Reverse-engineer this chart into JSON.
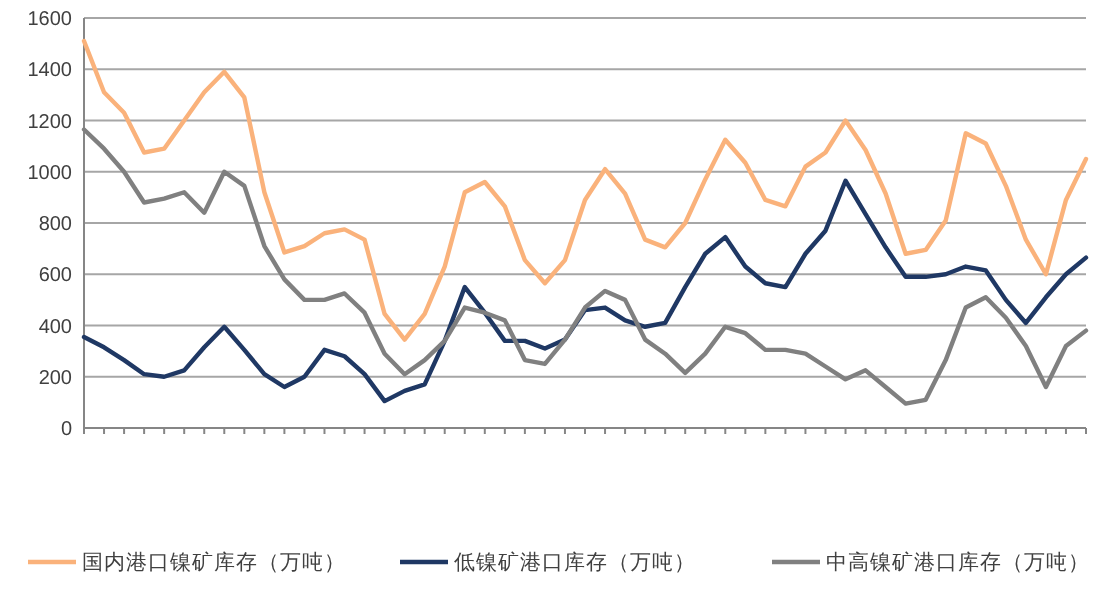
{
  "chart_data": {
    "type": "line",
    "categories": [
      null,
      null,
      null,
      null,
      null,
      null,
      null,
      null,
      null,
      null,
      null,
      null,
      null,
      null,
      null,
      null,
      null,
      null,
      null,
      null,
      null,
      null,
      null,
      null,
      null,
      null,
      null,
      null,
      null,
      null,
      null,
      null,
      null,
      null,
      null,
      null,
      null,
      null,
      null,
      null,
      null,
      null,
      null,
      null,
      null,
      null,
      null,
      null,
      null,
      null,
      null
    ],
    "series": [
      {
        "name": "国内港口镍矿库存（万吨）",
        "color": "#fab27b",
        "values": [
          1510,
          1310,
          1230,
          1075,
          1090,
          1200,
          1310,
          1390,
          1290,
          920,
          685,
          710,
          760,
          775,
          735,
          445,
          345,
          445,
          630,
          920,
          960,
          865,
          655,
          565,
          655,
          890,
          1010,
          915,
          735,
          705,
          800,
          970,
          1125,
          1035,
          890,
          865,
          1020,
          1075,
          1200,
          1085,
          915,
          680,
          695,
          810,
          1150,
          1110,
          945,
          735,
          600,
          890,
          1050
        ]
      },
      {
        "name": "低镍矿港口库存（万吨）",
        "color": "#1f3864",
        "values": [
          355,
          315,
          265,
          210,
          200,
          225,
          315,
          395,
          305,
          210,
          160,
          200,
          305,
          280,
          210,
          105,
          145,
          170,
          340,
          550,
          450,
          340,
          340,
          310,
          345,
          460,
          470,
          420,
          395,
          410,
          550,
          680,
          745,
          630,
          565,
          550,
          680,
          770,
          965,
          835,
          705,
          590,
          590,
          600,
          630,
          615,
          500,
          410,
          510,
          600,
          665
        ]
      },
      {
        "name": "中高镍矿港口库存（万吨）",
        "color": "#808080",
        "values": [
          1165,
          1090,
          1000,
          880,
          895,
          920,
          840,
          1000,
          945,
          710,
          580,
          500,
          500,
          525,
          450,
          290,
          210,
          265,
          340,
          470,
          450,
          420,
          265,
          250,
          345,
          470,
          535,
          500,
          345,
          290,
          215,
          290,
          395,
          370,
          305,
          305,
          290,
          240,
          190,
          225,
          160,
          95,
          110,
          265,
          470,
          510,
          430,
          320,
          160,
          320,
          380
        ]
      }
    ],
    "ylim": [
      0,
      1600
    ],
    "yticks": [
      0,
      200,
      400,
      600,
      800,
      1000,
      1200,
      1400,
      1600
    ],
    "grid": "y",
    "legend": "bottom",
    "marker": "none",
    "line_style": "solid"
  }
}
